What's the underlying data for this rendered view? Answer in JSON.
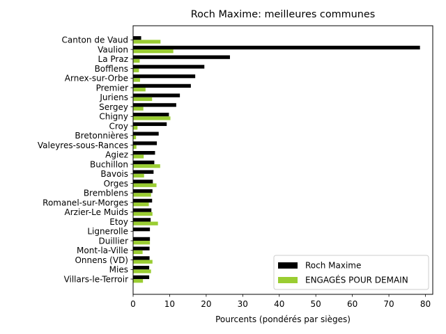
{
  "chart_data": {
    "type": "bar",
    "orientation": "horizontal",
    "title": "Roch Maxime: meilleures communes",
    "xlabel": "Pourcents (pondérés par sièges)",
    "ylabel": "",
    "xlim": [
      0,
      82
    ],
    "xticks": [
      0,
      10,
      20,
      30,
      40,
      50,
      60,
      70,
      80
    ],
    "grid": false,
    "legend_position": "lower-right",
    "categories": [
      "Canton de Vaud",
      "Vaulion",
      "La Praz",
      "Bofflens",
      "Arnex-sur-Orbe",
      "Premier",
      "Juriens",
      "Sergey",
      "Chigny",
      "Croy",
      "Bretonnières",
      "Valeyres-sous-Rances",
      "Agiez",
      "Buchillon",
      "Bavois",
      "Orges",
      "Bremblens",
      "Romanel-sur-Morges",
      "Arzier-Le Muids",
      "Etoy",
      "Lignerolle",
      "Duillier",
      "Mont-la-Ville",
      "Onnens (VD)",
      "Mies",
      "Villars-le-Terroir"
    ],
    "series": [
      {
        "name": "Roch Maxime",
        "color": "#000000",
        "values": [
          2.2,
          78.5,
          26.5,
          19.5,
          17.0,
          15.8,
          12.8,
          11.8,
          9.8,
          9.2,
          7.0,
          6.5,
          6.0,
          5.8,
          5.6,
          5.4,
          5.3,
          5.2,
          5.0,
          4.8,
          4.6,
          4.6,
          4.5,
          4.5,
          4.4,
          4.4
        ]
      },
      {
        "name": "ENGAGÉS POUR DEMAIN",
        "color": "#9ACD32",
        "values": [
          7.5,
          11.0,
          1.8,
          1.6,
          1.9,
          3.4,
          5.2,
          2.8,
          10.2,
          1.2,
          0.8,
          0.9,
          2.9,
          7.4,
          3.0,
          6.4,
          4.9,
          4.3,
          5.3,
          6.8,
          0.0,
          4.6,
          2.6,
          5.3,
          4.9,
          2.7
        ]
      }
    ]
  }
}
